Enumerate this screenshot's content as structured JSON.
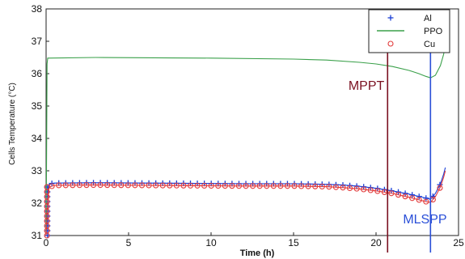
{
  "chart_data": {
    "type": "line",
    "xlabel": "Time (h)",
    "ylabel": "Cells Temperature (°C)",
    "xlim": [
      0,
      25
    ],
    "ylim": [
      31,
      38
    ],
    "x_ticks": [
      0,
      5,
      10,
      15,
      20,
      25
    ],
    "y_ticks": [
      31,
      32,
      33,
      34,
      35,
      36,
      37,
      38
    ],
    "x_tick_labels": [
      "0",
      "5",
      "10",
      "15",
      "20",
      "25"
    ],
    "y_tick_labels": [
      "31",
      "32",
      "33",
      "34",
      "35",
      "36",
      "37",
      "38"
    ],
    "grid": true,
    "legend_position": "top-right",
    "series": [
      {
        "name": "Al",
        "marker": "plus",
        "color": "#1a3fd6",
        "points": [
          [
            0,
            31.0
          ],
          [
            0.05,
            31.6
          ],
          [
            0.1,
            32.2
          ],
          [
            0.15,
            32.5
          ],
          [
            0.2,
            32.6
          ],
          [
            0.5,
            32.62
          ],
          [
            3,
            32.63
          ],
          [
            6,
            32.62
          ],
          [
            9,
            32.61
          ],
          [
            12,
            32.6
          ],
          [
            15,
            32.6
          ],
          [
            17,
            32.58
          ],
          [
            18,
            32.56
          ],
          [
            19,
            32.52
          ],
          [
            20,
            32.46
          ],
          [
            21,
            32.38
          ],
          [
            22,
            32.28
          ],
          [
            23,
            32.16
          ],
          [
            23.3,
            32.12
          ],
          [
            23.6,
            32.3
          ],
          [
            23.9,
            32.6
          ],
          [
            24.1,
            32.9
          ],
          [
            24.2,
            33.1
          ]
        ]
      },
      {
        "name": "PPO",
        "marker": "none",
        "color": "#3aa04a",
        "points": [
          [
            0,
            31.0
          ],
          [
            0.03,
            33.5
          ],
          [
            0.06,
            36.3
          ],
          [
            0.1,
            36.48
          ],
          [
            3,
            36.5
          ],
          [
            10,
            36.48
          ],
          [
            15,
            36.45
          ],
          [
            17,
            36.42
          ],
          [
            19,
            36.35
          ],
          [
            20,
            36.3
          ],
          [
            21,
            36.22
          ],
          [
            22,
            36.1
          ],
          [
            22.6,
            36.0
          ],
          [
            23.0,
            35.92
          ],
          [
            23.3,
            35.87
          ],
          [
            23.6,
            35.95
          ],
          [
            23.9,
            36.25
          ],
          [
            24.1,
            36.6
          ],
          [
            24.2,
            36.9
          ]
        ]
      },
      {
        "name": "Cu",
        "marker": "circle",
        "color": "#e23a3a",
        "points": [
          [
            0,
            31.0
          ],
          [
            0.05,
            31.5
          ],
          [
            0.1,
            32.1
          ],
          [
            0.15,
            32.4
          ],
          [
            0.2,
            32.5
          ],
          [
            0.5,
            32.55
          ],
          [
            3,
            32.56
          ],
          [
            6,
            32.55
          ],
          [
            9,
            32.54
          ],
          [
            12,
            32.53
          ],
          [
            15,
            32.53
          ],
          [
            17,
            32.51
          ],
          [
            18,
            32.48
          ],
          [
            19,
            32.44
          ],
          [
            20,
            32.38
          ],
          [
            21,
            32.3
          ],
          [
            22,
            32.18
          ],
          [
            23,
            32.05
          ],
          [
            23.3,
            32.02
          ],
          [
            23.6,
            32.2
          ],
          [
            23.9,
            32.5
          ],
          [
            24.1,
            32.8
          ],
          [
            24.2,
            33.0
          ]
        ]
      }
    ],
    "annotations": [
      {
        "label": "MPPT",
        "x": 20.7,
        "color": "#7a1020"
      },
      {
        "label": "MLSPP",
        "x": 23.3,
        "color": "#2a4fd8"
      }
    ]
  }
}
